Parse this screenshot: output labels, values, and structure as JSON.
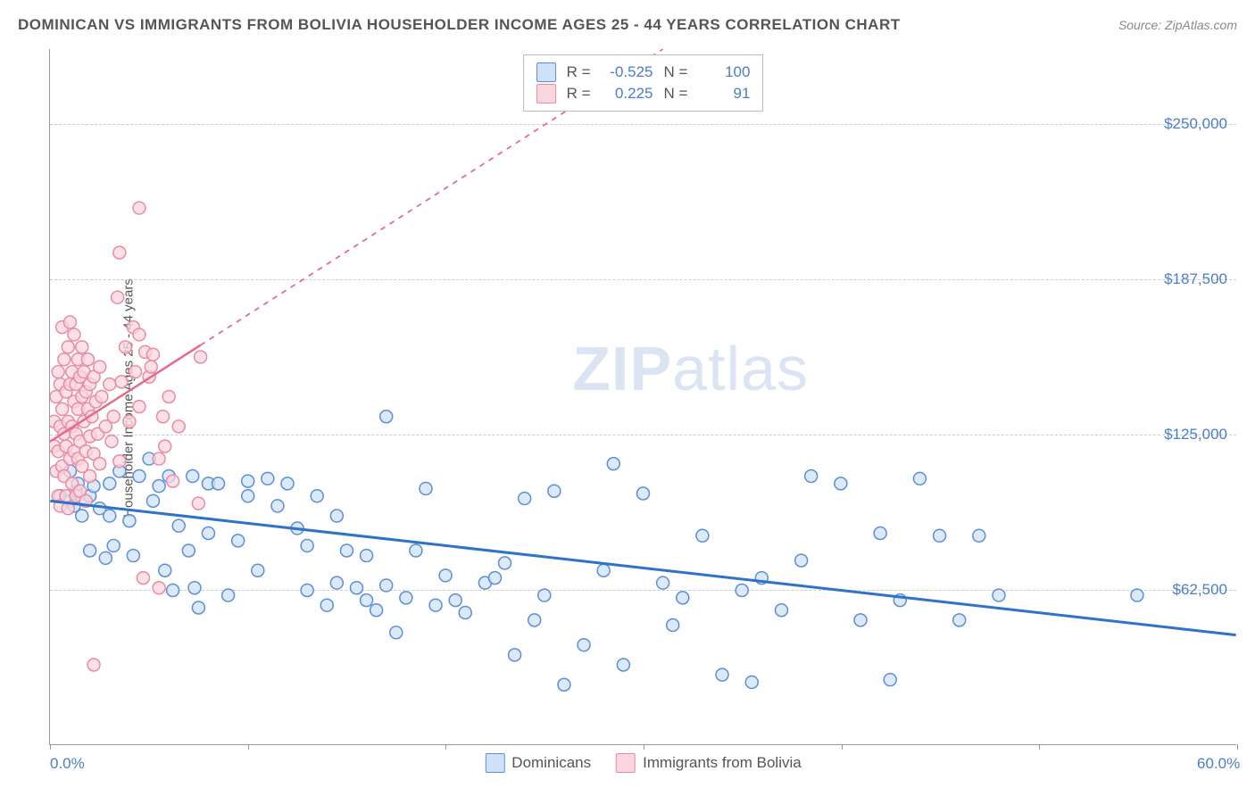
{
  "title": "DOMINICAN VS IMMIGRANTS FROM BOLIVIA HOUSEHOLDER INCOME AGES 25 - 44 YEARS CORRELATION CHART",
  "source": "Source: ZipAtlas.com",
  "ylabel": "Householder Income Ages 25 - 44 years",
  "watermark_a": "ZIP",
  "watermark_b": "atlas",
  "chart": {
    "type": "scatter",
    "xlim": [
      0,
      60
    ],
    "ylim": [
      0,
      280000
    ],
    "yticks": [
      {
        "v": 62500,
        "label": "$62,500"
      },
      {
        "v": 125000,
        "label": "$125,000"
      },
      {
        "v": 187500,
        "label": "$187,500"
      },
      {
        "v": 250000,
        "label": "$250,000"
      }
    ],
    "xticks": [
      {
        "v": 0,
        "label": "0.0%"
      },
      {
        "v": 10,
        "label": ""
      },
      {
        "v": 20,
        "label": ""
      },
      {
        "v": 30,
        "label": ""
      },
      {
        "v": 40,
        "label": ""
      },
      {
        "v": 50,
        "label": ""
      },
      {
        "v": 60,
        "label": "60.0%"
      }
    ],
    "background_color": "#ffffff",
    "grid_color": "#cccccc",
    "marker_radius": 7,
    "marker_stroke_width": 1.5,
    "series": [
      {
        "key": "dominicans",
        "label": "Dominicans",
        "fill": "#cfe1f7",
        "stroke": "#5a8fd6",
        "R_label": "R =",
        "N_label": "N =",
        "R": "-0.525",
        "N": "100",
        "trend": {
          "x1": 0,
          "y1": 98000,
          "x2": 60,
          "y2": 44000,
          "color": "#2f72c9",
          "width": 3,
          "solid_until_x": 60
        },
        "points": [
          [
            0.5,
            100000
          ],
          [
            1,
            110000
          ],
          [
            1,
            98000
          ],
          [
            1.2,
            96000
          ],
          [
            1.3,
            102000
          ],
          [
            1.4,
            105000
          ],
          [
            1.6,
            92000
          ],
          [
            1.8,
            98000
          ],
          [
            2,
            100000
          ],
          [
            2,
            78000
          ],
          [
            2.2,
            104000
          ],
          [
            2.5,
            95000
          ],
          [
            2.8,
            75000
          ],
          [
            3,
            105000
          ],
          [
            3,
            92000
          ],
          [
            3.2,
            80000
          ],
          [
            3.5,
            110000
          ],
          [
            4,
            90000
          ],
          [
            4.2,
            76000
          ],
          [
            4.5,
            108000
          ],
          [
            5,
            115000
          ],
          [
            5.2,
            98000
          ],
          [
            5.5,
            104000
          ],
          [
            5.8,
            70000
          ],
          [
            6,
            108000
          ],
          [
            6.2,
            62000
          ],
          [
            6.5,
            88000
          ],
          [
            7,
            78000
          ],
          [
            7.2,
            108000
          ],
          [
            7.3,
            63000
          ],
          [
            7.5,
            55000
          ],
          [
            8,
            105000
          ],
          [
            8,
            85000
          ],
          [
            8.5,
            105000
          ],
          [
            9,
            60000
          ],
          [
            9.5,
            82000
          ],
          [
            10,
            106000
          ],
          [
            10,
            100000
          ],
          [
            10.5,
            70000
          ],
          [
            11,
            107000
          ],
          [
            11.5,
            96000
          ],
          [
            12,
            105000
          ],
          [
            12.5,
            87000
          ],
          [
            13,
            80000
          ],
          [
            13,
            62000
          ],
          [
            13.5,
            100000
          ],
          [
            14,
            56000
          ],
          [
            14.5,
            65000
          ],
          [
            14.5,
            92000
          ],
          [
            15,
            78000
          ],
          [
            15.5,
            63000
          ],
          [
            16,
            76000
          ],
          [
            16,
            58000
          ],
          [
            16.5,
            54000
          ],
          [
            17,
            132000
          ],
          [
            17.5,
            45000
          ],
          [
            17,
            64000
          ],
          [
            18,
            59000
          ],
          [
            18.5,
            78000
          ],
          [
            19,
            103000
          ],
          [
            19.5,
            56000
          ],
          [
            20,
            68000
          ],
          [
            20.5,
            58000
          ],
          [
            21,
            53000
          ],
          [
            22,
            65000
          ],
          [
            22.5,
            67000
          ],
          [
            23,
            73000
          ],
          [
            23.5,
            36000
          ],
          [
            24,
            99000
          ],
          [
            24.5,
            50000
          ],
          [
            25,
            60000
          ],
          [
            25.5,
            102000
          ],
          [
            26,
            24000
          ],
          [
            27,
            40000
          ],
          [
            28,
            70000
          ],
          [
            28.5,
            113000
          ],
          [
            29,
            32000
          ],
          [
            30,
            101000
          ],
          [
            31,
            65000
          ],
          [
            31.5,
            48000
          ],
          [
            32,
            59000
          ],
          [
            33,
            84000
          ],
          [
            34,
            28000
          ],
          [
            35,
            62000
          ],
          [
            35.5,
            25000
          ],
          [
            36,
            67000
          ],
          [
            37,
            54000
          ],
          [
            38,
            74000
          ],
          [
            38.5,
            108000
          ],
          [
            40,
            105000
          ],
          [
            41,
            50000
          ],
          [
            42,
            85000
          ],
          [
            42.5,
            26000
          ],
          [
            43,
            58000
          ],
          [
            44,
            107000
          ],
          [
            45,
            84000
          ],
          [
            46,
            50000
          ],
          [
            47,
            84000
          ],
          [
            48,
            60000
          ],
          [
            55,
            60000
          ]
        ]
      },
      {
        "key": "bolivia",
        "label": "Immigrants from Bolivia",
        "fill": "#f9d6de",
        "stroke": "#e98ba3",
        "R_label": "R =",
        "N_label": "N =",
        "R": "0.225",
        "N": "91",
        "trend": {
          "x1": 0,
          "y1": 122000,
          "x2": 31,
          "y2": 280000,
          "color": "#e46a8c",
          "width": 2.5,
          "solid_until_x": 7.6
        },
        "points": [
          [
            0.2,
            130000
          ],
          [
            0.2,
            120000
          ],
          [
            0.3,
            140000
          ],
          [
            0.3,
            110000
          ],
          [
            0.4,
            150000
          ],
          [
            0.4,
            100000
          ],
          [
            0.4,
            118000
          ],
          [
            0.5,
            96000
          ],
          [
            0.5,
            145000
          ],
          [
            0.5,
            128000
          ],
          [
            0.6,
            168000
          ],
          [
            0.6,
            112000
          ],
          [
            0.6,
            135000
          ],
          [
            0.7,
            108000
          ],
          [
            0.7,
            125000
          ],
          [
            0.7,
            155000
          ],
          [
            0.8,
            142000
          ],
          [
            0.8,
            120000
          ],
          [
            0.8,
            100000
          ],
          [
            0.9,
            130000
          ],
          [
            0.9,
            160000
          ],
          [
            0.9,
            95000
          ],
          [
            1.0,
            145000
          ],
          [
            1.0,
            115000
          ],
          [
            1.0,
            170000
          ],
          [
            1.1,
            128000
          ],
          [
            1.1,
            105000
          ],
          [
            1.1,
            150000
          ],
          [
            1.2,
            138000
          ],
          [
            1.2,
            118000
          ],
          [
            1.2,
            165000
          ],
          [
            1.3,
            125000
          ],
          [
            1.3,
            145000
          ],
          [
            1.3,
            100000
          ],
          [
            1.4,
            155000
          ],
          [
            1.4,
            115000
          ],
          [
            1.4,
            135000
          ],
          [
            1.5,
            148000
          ],
          [
            1.5,
            122000
          ],
          [
            1.5,
            102000
          ],
          [
            1.6,
            140000
          ],
          [
            1.6,
            160000
          ],
          [
            1.6,
            112000
          ],
          [
            1.7,
            130000
          ],
          [
            1.7,
            150000
          ],
          [
            1.8,
            118000
          ],
          [
            1.8,
            142000
          ],
          [
            1.8,
            98000
          ],
          [
            1.9,
            135000
          ],
          [
            1.9,
            155000
          ],
          [
            2.0,
            124000
          ],
          [
            2.0,
            145000
          ],
          [
            2.0,
            108000
          ],
          [
            2.1,
            132000
          ],
          [
            2.2,
            148000
          ],
          [
            2.2,
            117000
          ],
          [
            2.3,
            138000
          ],
          [
            2.4,
            125000
          ],
          [
            2.5,
            152000
          ],
          [
            2.5,
            113000
          ],
          [
            2.6,
            140000
          ],
          [
            2.8,
            128000
          ],
          [
            3.0,
            145000
          ],
          [
            3.1,
            122000
          ],
          [
            3.2,
            132000
          ],
          [
            3.4,
            180000
          ],
          [
            3.5,
            114000
          ],
          [
            3.6,
            146000
          ],
          [
            3.8,
            160000
          ],
          [
            4.0,
            130000
          ],
          [
            4.2,
            168000
          ],
          [
            4.3,
            150000
          ],
          [
            4.5,
            136000
          ],
          [
            4.7,
            67000
          ],
          [
            4.8,
            158000
          ],
          [
            5.0,
            148000
          ],
          [
            5.2,
            157000
          ],
          [
            5.5,
            115000
          ],
          [
            5.7,
            132000
          ],
          [
            5.8,
            120000
          ],
          [
            6.0,
            140000
          ],
          [
            6.2,
            106000
          ],
          [
            6.5,
            128000
          ],
          [
            2.2,
            32000
          ],
          [
            3.5,
            198000
          ],
          [
            4.5,
            216000
          ],
          [
            4.5,
            165000
          ],
          [
            5.5,
            63000
          ],
          [
            5.1,
            152000
          ],
          [
            7.5,
            97000
          ],
          [
            7.6,
            156000
          ]
        ]
      }
    ]
  }
}
